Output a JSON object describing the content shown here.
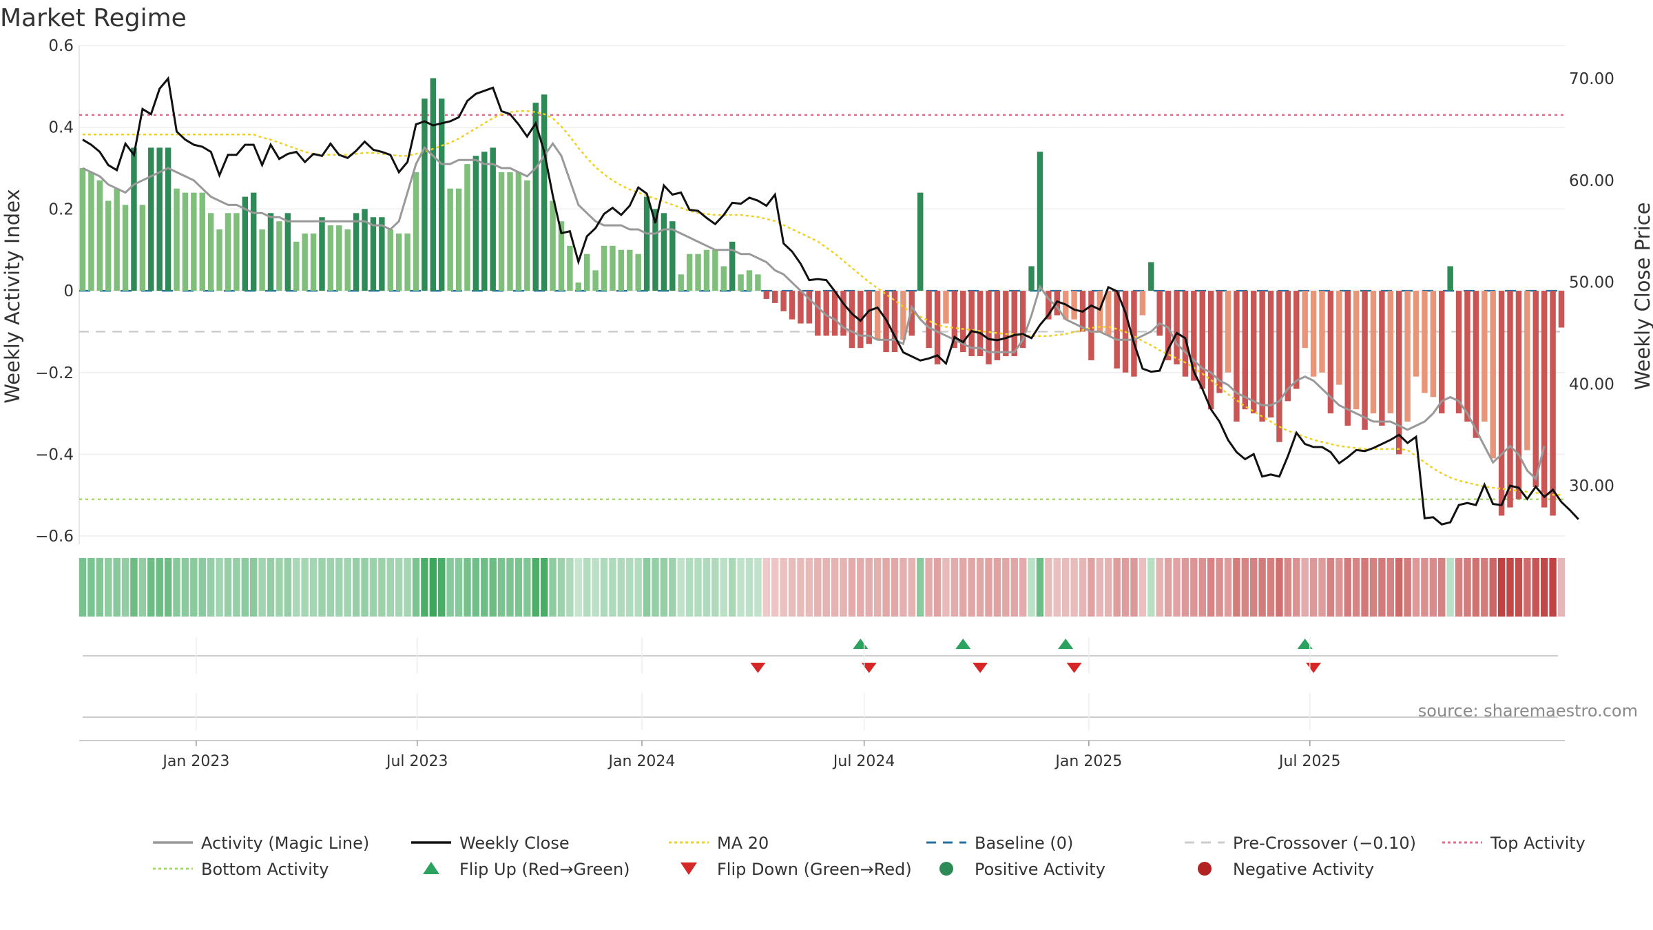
{
  "title": "Market Regime",
  "source": "source: sharemaestro.com",
  "colors": {
    "strong_green": "#2e8b57",
    "light_green": "#7fbf7b",
    "strong_red": "#c95555",
    "light_red": "#e8957a",
    "magic_line": "#999999",
    "close_line": "#111111",
    "ma20": "#f0d020",
    "baseline": "#2471a3",
    "pre_crossover": "#cccccc",
    "top_activity": "#e26a8a",
    "bottom_activity": "#a6d96a",
    "flip_up": "#2ca25f",
    "flip_down": "#d62728"
  },
  "chart_data": {
    "type": "bar",
    "title": "Market Regime",
    "ylabel": "Weekly Activity Index",
    "y2label": "Weekly Close Price",
    "ylim": [
      -0.62,
      0.6
    ],
    "y2lim": [
      24.25,
      73.25
    ],
    "yticks": [
      "0.6",
      "0.4",
      "0.2",
      "0",
      "−0.2",
      "−0.4",
      "−0.6"
    ],
    "y2ticks": [
      "70.00",
      "60.00",
      "50.00",
      "40.00",
      "30.00"
    ],
    "x_date_ticks": [
      {
        "date": "2023-01-01",
        "label": "Jan 2023"
      },
      {
        "date": "2023-07-01",
        "label": "Jul 2023"
      },
      {
        "date": "2024-01-01",
        "label": "Jan 2024"
      },
      {
        "date": "2024-07-01",
        "label": "Jul 2024"
      },
      {
        "date": "2025-01-01",
        "label": "Jan 2025"
      },
      {
        "date": "2025-07-01",
        "label": "Jul 2025"
      }
    ],
    "first_week": "2022-09-30",
    "week_interval_days": 7,
    "reference_lines": {
      "baseline": 0,
      "pre_crossover": -0.1,
      "top_activity": 0.43,
      "bottom_activity": -0.51
    },
    "grid": true,
    "legend_position": "bottom",
    "series": [
      {
        "name": "Activity (Magic Line)",
        "type": "line",
        "axis": "left",
        "values": [
          0.3,
          0.29,
          0.28,
          0.26,
          0.25,
          0.24,
          0.26,
          0.27,
          0.28,
          0.29,
          0.3,
          0.29,
          0.28,
          0.27,
          0.25,
          0.23,
          0.22,
          0.21,
          0.21,
          0.2,
          0.19,
          0.19,
          0.18,
          0.18,
          0.17,
          0.17,
          0.17,
          0.17,
          0.17,
          0.17,
          0.17,
          0.17,
          0.17,
          0.17,
          0.16,
          0.16,
          0.15,
          0.17,
          0.24,
          0.31,
          0.35,
          0.33,
          0.31,
          0.31,
          0.32,
          0.32,
          0.32,
          0.31,
          0.31,
          0.3,
          0.3,
          0.29,
          0.28,
          0.3,
          0.33,
          0.36,
          0.33,
          0.27,
          0.21,
          0.19,
          0.17,
          0.16,
          0.16,
          0.16,
          0.15,
          0.15,
          0.14,
          0.14,
          0.15,
          0.15,
          0.14,
          0.13,
          0.12,
          0.11,
          0.1,
          0.1,
          0.1,
          0.09,
          0.09,
          0.08,
          0.07,
          0.05,
          0.04,
          0.02,
          0,
          -0.02,
          -0.04,
          -0.06,
          -0.07,
          -0.09,
          -0.1,
          -0.11,
          -0.11,
          -0.12,
          -0.12,
          -0.12,
          -0.13,
          -0.04,
          -0.07,
          -0.09,
          -0.1,
          -0.11,
          -0.12,
          -0.13,
          -0.14,
          -0.14,
          -0.15,
          -0.15,
          -0.15,
          -0.15,
          -0.12,
          -0.06,
          0.01,
          -0.02,
          -0.04,
          -0.07,
          -0.08,
          -0.09,
          -0.1,
          -0.1,
          -0.11,
          -0.12,
          -0.12,
          -0.12,
          -0.11,
          -0.1,
          -0.08,
          -0.09,
          -0.13,
          -0.15,
          -0.17,
          -0.19,
          -0.2,
          -0.22,
          -0.23,
          -0.25,
          -0.26,
          -0.27,
          -0.28,
          -0.28,
          -0.27,
          -0.24,
          -0.22,
          -0.21,
          -0.22,
          -0.24,
          -0.26,
          -0.28,
          -0.29,
          -0.3,
          -0.31,
          -0.32,
          -0.32,
          -0.32,
          -0.33,
          -0.34,
          -0.33,
          -0.32,
          -0.3,
          -0.27,
          -0.26,
          -0.27,
          -0.3,
          -0.34,
          -0.38,
          -0.42,
          -0.4,
          -0.38,
          -0.4,
          -0.44,
          -0.46,
          -0.38
        ]
      },
      {
        "name": "Weekly Close",
        "type": "line",
        "axis": "right",
        "values": [
          64,
          63.5,
          62.8,
          61.5,
          61,
          63.6,
          62.5,
          67,
          66.5,
          69,
          70,
          64.8,
          64,
          63.5,
          63.3,
          62.8,
          60.5,
          62.5,
          62.5,
          63.5,
          63.5,
          61.5,
          63.5,
          62.1,
          62.6,
          62.8,
          61.8,
          62.6,
          62.4,
          63.6,
          62.5,
          62.2,
          62.9,
          63.8,
          63,
          62.8,
          62.5,
          60.8,
          61.8,
          65.5,
          65.8,
          65.4,
          65.6,
          65.8,
          66.2,
          67.8,
          68.5,
          68.8,
          69.1,
          66.8,
          66.5,
          65.5,
          64.3,
          65.6,
          62.8,
          58.5,
          54.8,
          55,
          52,
          54.5,
          55.3,
          56.7,
          57.3,
          56.6,
          57.5,
          59.3,
          58.7,
          55.8,
          59.5,
          58.6,
          58.8,
          57.1,
          57,
          56.3,
          55.7,
          56.6,
          57.8,
          57.7,
          58.3,
          58,
          57.5,
          58.6,
          53.8,
          53,
          51.8,
          50.2,
          50.3,
          50.2,
          49.1,
          47.9,
          46.9,
          46.2,
          47.2,
          47.5,
          46.3,
          44.7,
          43.1,
          42.7,
          42.3,
          42.5,
          42.8,
          42,
          44.6,
          44.1,
          45.2,
          45,
          44.4,
          44.3,
          44.5,
          44.8,
          44.9,
          44.5,
          45.8,
          46.8,
          48.1,
          47.8,
          47.3,
          47.1,
          47.7,
          47.3,
          49.5,
          49.1,
          47,
          44,
          41.5,
          41.2,
          41.3,
          43.4,
          45,
          44.5,
          41.2,
          39.5,
          37.5,
          36.3,
          34.5,
          33.3,
          32.6,
          33.1,
          30.9,
          31.1,
          30.9,
          32.9,
          35.2,
          34.1,
          33.8,
          33.8,
          33.3,
          32.2,
          32.8,
          33.5,
          33.4,
          33.7,
          34.1,
          34.5,
          35,
          34.2,
          34.8,
          26.8,
          26.9,
          26.2,
          26.4,
          28.1,
          28.3,
          28.1,
          30.1,
          28.2,
          28.1,
          30,
          29.8,
          28.7,
          29.9,
          28.9,
          29.6,
          28.4,
          27.6,
          26.7
        ]
      },
      {
        "name": "MA 20",
        "type": "line",
        "axis": "right",
        "values": [
          64.5,
          64.5,
          64.5,
          64.5,
          64.5,
          64.5,
          64.5,
          64.5,
          64.5,
          64.5,
          64.5,
          64.5,
          64.5,
          64.5,
          64.5,
          64.5,
          64.5,
          64.5,
          64.5,
          64.5,
          64.5,
          64.2,
          64,
          63.7,
          63.4,
          63.1,
          62.8,
          62.6,
          62.5,
          62.5,
          62.5,
          62.5,
          62.6,
          62.7,
          62.7,
          62.6,
          62.5,
          62.4,
          62.4,
          62.6,
          62.8,
          63.1,
          63.4,
          63.7,
          64.1,
          64.6,
          65.1,
          65.6,
          66.1,
          66.5,
          66.7,
          66.8,
          66.8,
          66.7,
          66.5,
          66.1,
          65.3,
          64.3,
          63.2,
          62.2,
          61.3,
          60.6,
          60,
          59.5,
          59.1,
          58.8,
          58.5,
          58.2,
          57.9,
          57.6,
          57.3,
          57,
          56.8,
          56.7,
          56.6,
          56.6,
          56.6,
          56.6,
          56.5,
          56.4,
          56.2,
          56,
          55.6,
          55.2,
          54.8,
          54.4,
          54,
          53.4,
          52.8,
          52.1,
          51.4,
          50.7,
          50,
          49.4,
          48.8,
          48.2,
          47.6,
          47,
          46.6,
          46.2,
          45.8,
          45.6,
          45.5,
          45.4,
          45.3,
          45.2,
          45.1,
          45,
          44.9,
          44.9,
          44.8,
          44.7,
          44.7,
          44.7,
          44.8,
          44.9,
          45.1,
          45.3,
          45.5,
          45.6,
          45.6,
          45.4,
          45.1,
          44.7,
          44.2,
          43.8,
          43.3,
          42.9,
          42.5,
          42.1,
          41.6,
          41,
          40.4,
          39.7,
          39,
          38.4,
          37.8,
          37.3,
          36.8,
          36.3,
          35.8,
          35.4,
          35.1,
          34.8,
          34.5,
          34.3,
          34.1,
          33.9,
          33.8,
          33.7,
          33.6,
          33.6,
          33.6,
          33.6,
          33.6,
          33.5,
          32.9,
          32.3,
          31.7,
          31.2,
          30.8,
          30.5,
          30.3,
          30.1,
          29.9,
          29.8,
          29.7,
          29.6,
          29.5,
          29.4,
          29.3,
          29.2,
          29.1,
          29.1
        ]
      },
      {
        "name": "Weekly Activity Index",
        "type": "bar",
        "axis": "left",
        "values": [
          0.3,
          0.29,
          0.27,
          0.22,
          0.25,
          0.21,
          0.35,
          0.21,
          0.35,
          0.35,
          0.35,
          0.25,
          0.24,
          0.24,
          0.24,
          0.19,
          0.15,
          0.19,
          0.19,
          0.23,
          0.24,
          0.15,
          0.19,
          0.17,
          0.19,
          0.12,
          0.14,
          0.14,
          0.18,
          0.16,
          0.16,
          0.15,
          0.19,
          0.2,
          0.18,
          0.18,
          0.15,
          0.14,
          0.14,
          0.29,
          0.47,
          0.52,
          0.47,
          0.25,
          0.25,
          0.31,
          0.33,
          0.34,
          0.35,
          0.29,
          0.29,
          0.29,
          0.27,
          0.46,
          0.48,
          0.22,
          0.17,
          0.11,
          0.02,
          0.09,
          0.05,
          0.11,
          0.11,
          0.1,
          0.1,
          0.09,
          0.23,
          0.2,
          0.19,
          0.17,
          0.04,
          0.09,
          0.09,
          0.1,
          0.1,
          0.06,
          0.12,
          0.04,
          0.05,
          0.04,
          -0.02,
          -0.03,
          -0.05,
          -0.07,
          -0.08,
          -0.08,
          -0.11,
          -0.11,
          -0.11,
          -0.11,
          -0.14,
          -0.14,
          -0.13,
          -0.12,
          -0.15,
          -0.15,
          -0.12,
          -0.11,
          0.24,
          -0.14,
          -0.18,
          -0.08,
          -0.14,
          -0.15,
          -0.16,
          -0.16,
          -0.18,
          -0.17,
          -0.16,
          -0.16,
          -0.14,
          0.06,
          0.34,
          -0.07,
          -0.06,
          -0.07,
          -0.07,
          -0.1,
          -0.17,
          -0.1,
          -0.11,
          -0.19,
          -0.2,
          -0.21,
          -0.06,
          0.07,
          -0.11,
          -0.17,
          -0.18,
          -0.21,
          -0.22,
          -0.24,
          -0.29,
          -0.25,
          -0.2,
          -0.32,
          -0.29,
          -0.3,
          -0.32,
          -0.31,
          -0.37,
          -0.27,
          -0.24,
          -0.14,
          -0.21,
          -0.2,
          -0.3,
          -0.23,
          -0.33,
          -0.29,
          -0.34,
          -0.3,
          -0.33,
          -0.3,
          -0.4,
          -0.32,
          -0.21,
          -0.25,
          -0.26,
          -0.3,
          0.06,
          -0.3,
          -0.32,
          -0.36,
          -0.32,
          -0.41,
          -0.55,
          -0.53,
          -0.51,
          -0.39,
          -0.48,
          -0.53,
          -0.55,
          -0.09
        ]
      }
    ],
    "flip_up": [
      "2024-06-28",
      "2024-09-20",
      "2024-12-13",
      "2025-06-27"
    ],
    "flip_down": [
      "2024-04-05",
      "2024-07-05",
      "2024-10-04",
      "2024-12-20",
      "2025-07-04"
    ]
  },
  "legend": [
    {
      "label": "Activity (Magic Line)",
      "symbol": "line",
      "color": "#999999"
    },
    {
      "label": "Weekly Close",
      "symbol": "line",
      "color": "#111111"
    },
    {
      "label": "MA 20",
      "symbol": "dotted",
      "color": "#f0d020"
    },
    {
      "label": "Baseline (0)",
      "symbol": "dashed",
      "color": "#2471a3"
    },
    {
      "label": "Pre-Crossover (−0.10)",
      "symbol": "dashed",
      "color": "#cccccc"
    },
    {
      "label": "Top Activity",
      "symbol": "dotted",
      "color": "#e26a8a"
    },
    {
      "label": "Bottom Activity",
      "symbol": "dotted",
      "color": "#a6d96a"
    },
    {
      "label": "Flip Up (Red→Green)",
      "symbol": "triangle-up",
      "color": "#2ca25f"
    },
    {
      "label": "Flip Down (Green→Red)",
      "symbol": "triangle-down",
      "color": "#d62728"
    },
    {
      "label": "Positive Activity",
      "symbol": "circle",
      "color": "#2e8b57"
    },
    {
      "label": "Negative Activity",
      "symbol": "circle",
      "color": "#b22222"
    }
  ]
}
